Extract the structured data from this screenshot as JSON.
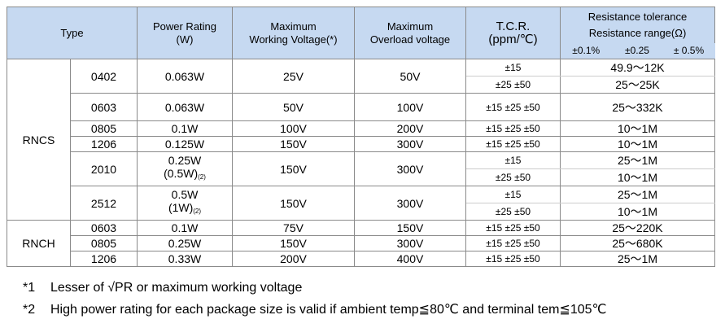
{
  "header": {
    "type": "Type",
    "power_rating": "Power Rating",
    "power_unit": "(W)",
    "working_1": "Maximum",
    "working_2": "Working Voltage(*)",
    "overload_1": "Maximum",
    "overload_2": "Overload voltage",
    "tcr_1": "T.C.R.",
    "tcr_2": "(ppm/℃)",
    "tolerance": "Resistance tolerance",
    "range": "Resistance range(Ω)",
    "tolerance_columns": [
      "±0.1%",
      "±0.25",
      "± 0.5%"
    ]
  },
  "groups": [
    {
      "name": "RNCS",
      "rows": [
        {
          "size": "0402",
          "power": "0.063W",
          "working": "25V",
          "overload": "50V",
          "sub": [
            {
              "tcr": "±15",
              "range": "49.9～12K"
            },
            {
              "tcr": "±25 ±50",
              "range": "25～25K"
            }
          ]
        },
        {
          "size": "0603",
          "power": "0.063W",
          "working": "50V",
          "overload": "100V",
          "sub": [
            {
              "tcr": "±15 ±25 ±50",
              "range": "25～332K"
            }
          ]
        },
        {
          "size": "0805",
          "power": "0.1W",
          "working": "100V",
          "overload": "200V",
          "sub": [
            {
              "tcr": "±15 ±25 ±50",
              "range": "10～1M"
            }
          ]
        },
        {
          "size": "1206",
          "power": "0.125W",
          "working": "150V",
          "overload": "300V",
          "sub": [
            {
              "tcr": "±15 ±25 ±50",
              "range": "10～1M"
            }
          ]
        },
        {
          "size": "2010",
          "power": "0.25W",
          "power_2": "(0.5W)",
          "power_note": "(2)",
          "working": "150V",
          "overload": "300V",
          "sub": [
            {
              "tcr": "±15",
              "range": "25～1M"
            },
            {
              "tcr": "±25 ±50",
              "range": "10～1M"
            }
          ]
        },
        {
          "size": "2512",
          "power": "0.5W",
          "power_2": "(1W)",
          "power_note": "(2)",
          "working": "150V",
          "overload": "300V",
          "sub": [
            {
              "tcr": "±15",
              "range": "25～1M"
            },
            {
              "tcr": "±25 ±50",
              "range": "10～1M"
            }
          ]
        }
      ]
    },
    {
      "name": "RNCH",
      "rows": [
        {
          "size": "0603",
          "power": "0.1W",
          "working": "75V",
          "overload": "150V",
          "sub": [
            {
              "tcr": "±15 ±25 ±50",
              "range": "25～220K"
            }
          ]
        },
        {
          "size": "0805",
          "power": "0.25W",
          "working": "150V",
          "overload": "300V",
          "sub": [
            {
              "tcr": "±15 ±25 ±50",
              "range": "25～680K"
            }
          ]
        },
        {
          "size": "1206",
          "power": "0.33W",
          "working": "200V",
          "overload": "400V",
          "sub": [
            {
              "tcr": "±15 ±25 ±50",
              "range": "25～1M"
            }
          ]
        }
      ]
    }
  ],
  "notes": [
    {
      "marker": "*1",
      "text": "Lesser of √PR or maximum working voltage"
    },
    {
      "marker": "*2",
      "text": "High power rating for each package size is valid if ambient temp≦80℃ and terminal tem≦105℃"
    }
  ]
}
